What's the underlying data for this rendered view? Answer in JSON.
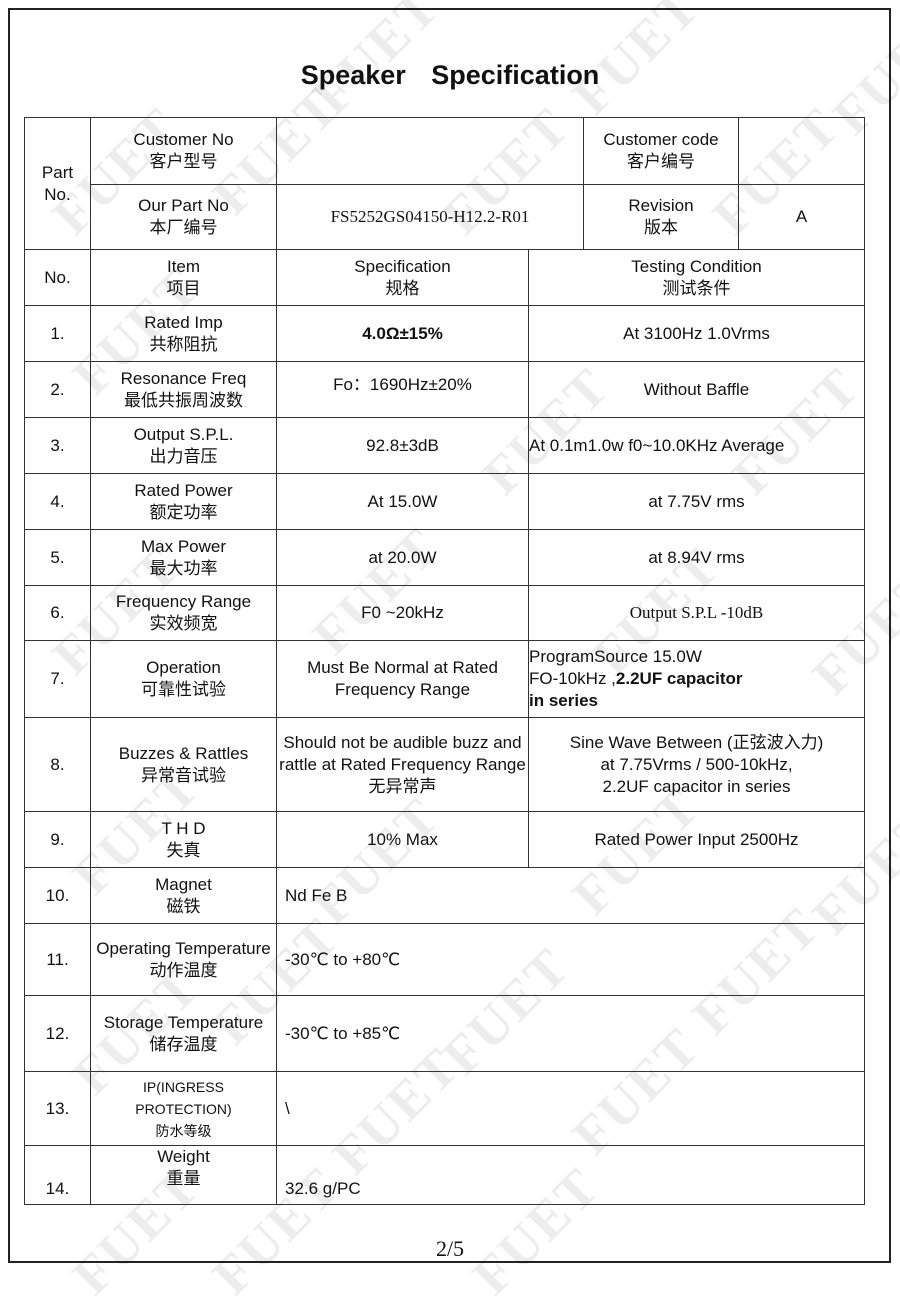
{
  "title": "Speaker   Specification",
  "watermark": "FUET",
  "header": {
    "part_no_label": "Part No.",
    "customer_no_label": "Customer No",
    "customer_no_label_cn": "客户型号",
    "customer_no_value": "",
    "customer_code_label": "Customer code",
    "customer_code_label_cn": "客户编号",
    "customer_code_value": "",
    "our_part_no_label": "Our Part No",
    "our_part_no_label_cn": "本厂编号",
    "our_part_no_value": "FS5252GS04150-H12.2-R01",
    "revision_label": "Revision",
    "revision_label_cn": "版本",
    "revision_value": "A"
  },
  "columns": {
    "no": "No.",
    "item": "Item",
    "item_cn": "项目",
    "spec": "Specification",
    "spec_cn": "规格",
    "test": "Testing Condition",
    "test_cn": "测试条件"
  },
  "rows": [
    {
      "no": "1.",
      "item": "Rated Imp",
      "item_cn": "共称阻抗",
      "spec": "4.0Ω±15%",
      "test": "At 3100Hz 1.0Vrms"
    },
    {
      "no": "2.",
      "item": "Resonance Freq",
      "item_cn": "最低共振周波数",
      "spec": "Fo：1690Hz±20%",
      "test": "Without Baffle"
    },
    {
      "no": "3.",
      "item": "Output S.P.L.",
      "item_cn": "出力音压",
      "spec": "92.8±3dB",
      "test": "At 0.1m1.0w f0~10.0KHz Average"
    },
    {
      "no": "4.",
      "item": "Rated Power",
      "item_cn": "额定功率",
      "spec": "At    15.0W",
      "test": "at    7.75V rms"
    },
    {
      "no": "5.",
      "item": "Max Power",
      "item_cn": "最大功率",
      "spec": "at   20.0W",
      "test": "at   8.94V rms"
    },
    {
      "no": "6.",
      "item": "Frequency Range",
      "item_cn": "实效频宽",
      "spec": "F0 ~20kHz",
      "test": "Output S.P.L -10dB"
    },
    {
      "no": "7.",
      "item": "Operation",
      "item_cn": "可靠性试验",
      "spec": "Must Be Normal at Rated Frequency Range",
      "test_lines": [
        "ProgramSource  15.0W",
        "FO-10kHz  ,",
        "2.2UF  capacitor",
        "in series"
      ]
    },
    {
      "no": "8.",
      "item": "Buzzes & Rattles",
      "item_cn": "异常音试验",
      "spec": "Should not be audible buzz and rattle at Rated Frequency Range",
      "spec_cn": "无异常声",
      "test_lines": [
        "Sine   Wave  Between (正弦波入力)",
        "at  7.75Vrms / 500-10kHz,",
        "2.2UF capacitor in series"
      ]
    },
    {
      "no": "9.",
      "item": "T    H    D",
      "item_cn": "失真",
      "spec": "10% Max",
      "test": "Rated Power Input 2500Hz"
    },
    {
      "no": "10.",
      "item": "Magnet",
      "item_cn": "磁铁",
      "spec": "Nd Fe B"
    },
    {
      "no": "11.",
      "item": "Operating Temperature",
      "item_cn": "动作温度",
      "spec": "-30℃ to    +80℃"
    },
    {
      "no": "12.",
      "item": "Storage Temperature",
      "item_cn": "储存温度",
      "spec": "-30℃ to    +85℃"
    },
    {
      "no": "13.",
      "item": "IP(INGRESS PROTECTION)",
      "item_cn": "防水等级",
      "spec": "\\"
    },
    {
      "no": "14.",
      "item": "Weight",
      "item_cn": "重量",
      "spec": "32.6 g/PC"
    }
  ],
  "page_number": "2/5"
}
